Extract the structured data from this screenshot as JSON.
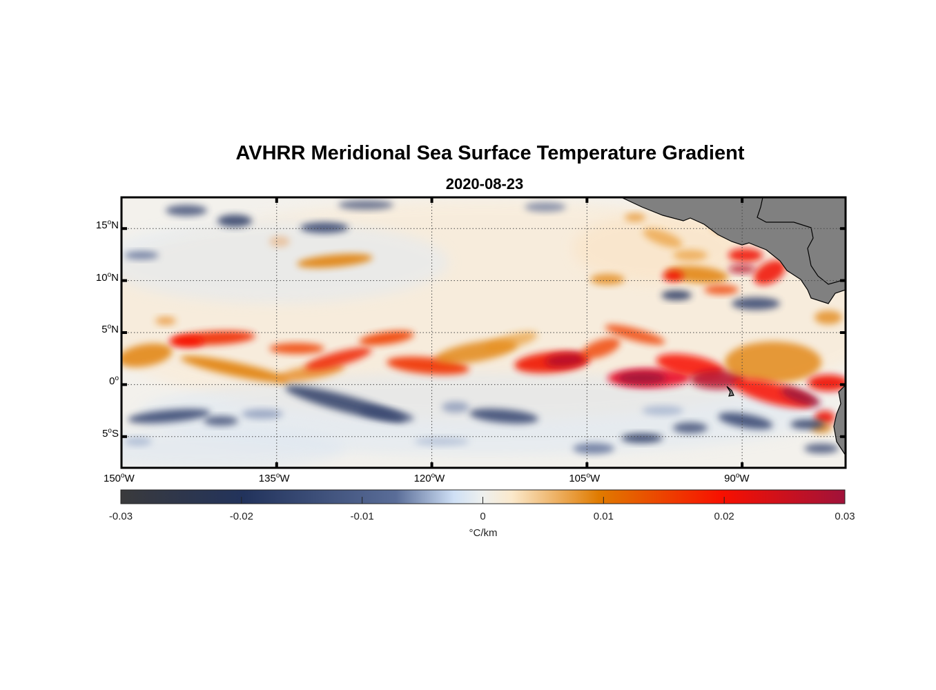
{
  "title": "AVHRR Meridional Sea Surface Temperature Gradient",
  "subtitle": "2020-08-23",
  "chart_data": {
    "type": "heatmap",
    "title": "AVHRR Meridional Sea Surface Temperature Gradient",
    "subtitle": "2020-08-23",
    "lon_range": [
      -150,
      -80
    ],
    "lat_range": [
      -8,
      18
    ],
    "x_ticks": [
      {
        "value": -150,
        "label": "150",
        "suffix": "W"
      },
      {
        "value": -135,
        "label": "135",
        "suffix": "W"
      },
      {
        "value": -120,
        "label": "120",
        "suffix": "W"
      },
      {
        "value": -105,
        "label": "105",
        "suffix": "W"
      },
      {
        "value": -90,
        "label": "90",
        "suffix": "W"
      }
    ],
    "y_ticks": [
      {
        "value": 15,
        "label": "15",
        "suffix": "N"
      },
      {
        "value": 10,
        "label": "10",
        "suffix": "N"
      },
      {
        "value": 5,
        "label": "5",
        "suffix": "N"
      },
      {
        "value": 0,
        "label": "0",
        "suffix": ""
      },
      {
        "value": -5,
        "label": "5",
        "suffix": "S"
      }
    ],
    "grid": true,
    "colorbar": {
      "range": [
        -0.03,
        0.03
      ],
      "ticks": [
        "-0.03",
        "-0.02",
        "-0.01",
        "0",
        "0.01",
        "0.02",
        "0.03"
      ],
      "label": "°C/km",
      "placement": "bottom",
      "colors": [
        "#3a3a3c",
        "#22335c",
        "#5a6d98",
        "#cfe0f5",
        "#eef0ee",
        "#fbe9cc",
        "#e07b00",
        "#f81000",
        "#a0123a"
      ]
    },
    "land_color": "#808080"
  }
}
